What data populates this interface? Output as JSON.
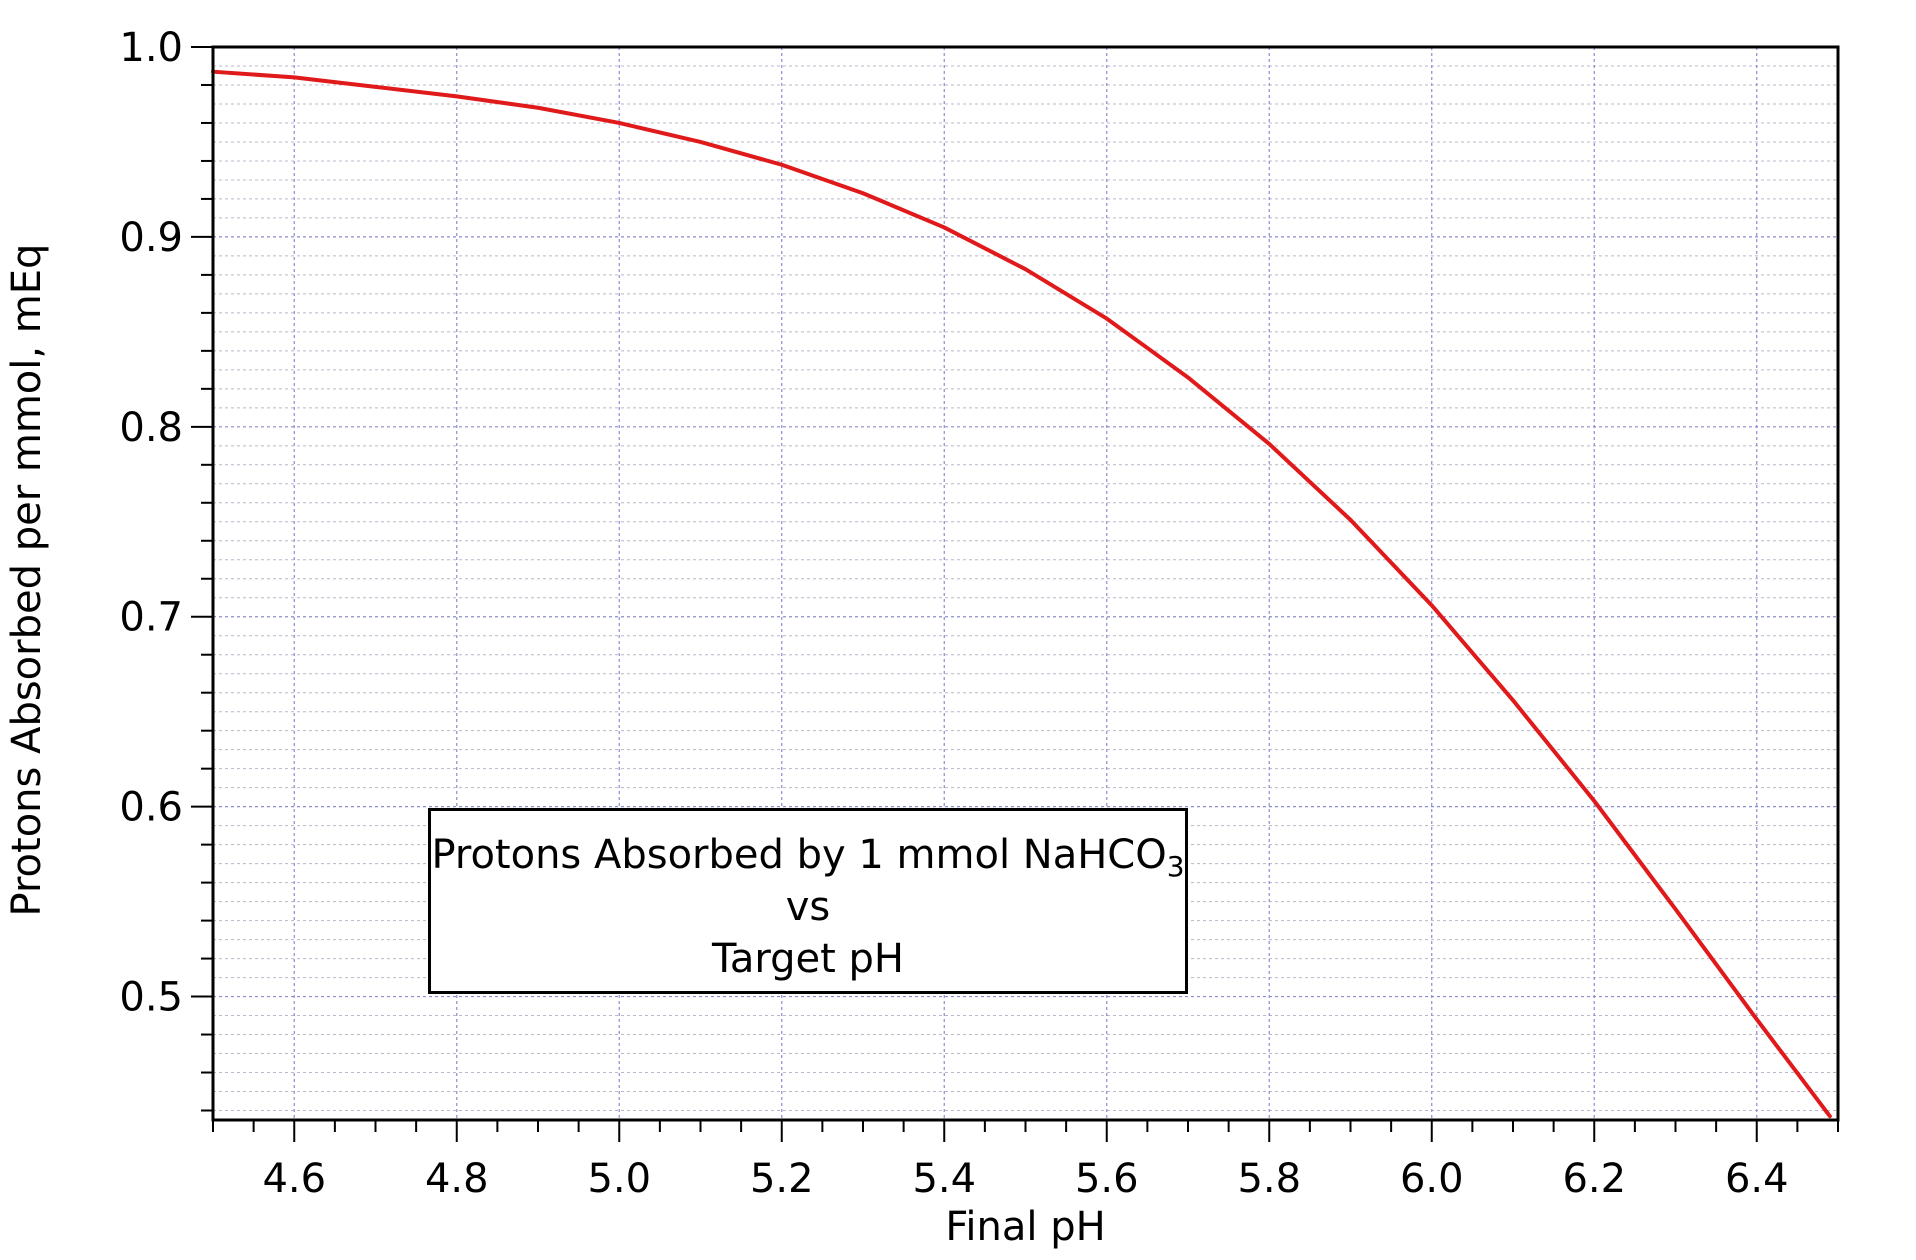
{
  "chart_data": {
    "type": "line",
    "xlabel": "Final pH",
    "ylabel": "Protons Absorbed per mmol, mEq",
    "xlim": [
      4.5,
      6.5
    ],
    "ylim": [
      0.435,
      1.0
    ],
    "x_ticks": [
      4.6,
      4.8,
      5.0,
      5.2,
      5.4,
      5.6,
      5.8,
      6.0,
      6.2,
      6.4
    ],
    "x_tick_labels": [
      "4.6",
      "4.8",
      "5.0",
      "5.2",
      "5.4",
      "5.6",
      "5.8",
      "6.0",
      "6.2",
      "6.4"
    ],
    "y_ticks": [
      0.5,
      0.6,
      0.7,
      0.8,
      0.9,
      1.0
    ],
    "y_tick_labels": [
      "0.5",
      "0.6",
      "0.7",
      "0.8",
      "0.9",
      "1.0"
    ],
    "grid": true,
    "series": [
      {
        "color": "#e0191b",
        "x": [
          4.5,
          4.6,
          4.7,
          4.8,
          4.9,
          5.0,
          5.1,
          5.2,
          5.3,
          5.4,
          5.5,
          5.6,
          5.7,
          5.8,
          5.9,
          6.0,
          6.1,
          6.2,
          6.3,
          6.4,
          6.49
        ],
        "y": [
          0.987,
          0.984,
          0.979,
          0.974,
          0.968,
          0.96,
          0.95,
          0.938,
          0.923,
          0.905,
          0.883,
          0.857,
          0.826,
          0.791,
          0.751,
          0.706,
          0.656,
          0.603,
          0.546,
          0.488,
          0.437
        ]
      }
    ],
    "annotation": {
      "line1_text": "Protons Absorbed by 1 mmol NaHCO",
      "line1_subscript": "3",
      "line2": "vs",
      "line3": "Target pH"
    }
  }
}
